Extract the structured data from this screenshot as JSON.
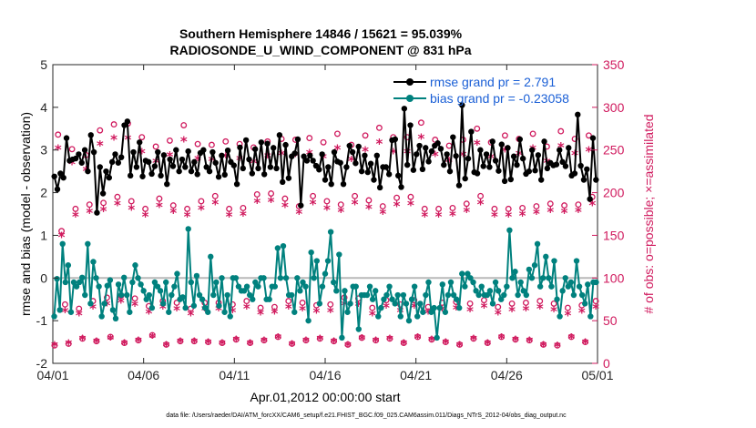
{
  "chart_data": {
    "type": "line",
    "title_line1": "Southern Hemisphere 14846 / 15621 = 95.039%",
    "title_line2": "RADIOSONDE_U_WIND_COMPONENT @ 831 hPa",
    "xlabel": "Apr.01,2012 00:00:00 start",
    "ylabel_left": "rmse and bias (model - observation)",
    "ylabel_right": "# of obs: o=possible; ×=assimilated",
    "xticks": [
      "04/01",
      "04/06",
      "04/11",
      "04/16",
      "04/21",
      "04/26",
      "05/01"
    ],
    "xlim": [
      0,
      30
    ],
    "ylim_left": [
      -2,
      5
    ],
    "ylim_right": [
      0,
      350
    ],
    "yticks_left": [
      "-2",
      "-1",
      "0",
      "1",
      "2",
      "3",
      "4",
      "5"
    ],
    "yticks_right": [
      "0",
      "50",
      "100",
      "150",
      "200",
      "250",
      "300",
      "350"
    ],
    "footer": "data file: /Users/raeder/DAI/ATM_forcXX/CAM6_setup/f.e21.FHIST_BGC.f09_025.CAM6assim.011/Diags_NTrS_2012-04/obs_diag_output.nc",
    "series": [
      {
        "name": "rmse grand pr = 2.791",
        "color": "#000000",
        "marker": "filled-circle",
        "values": [
          2.38,
          2.08,
          2.45,
          2.35,
          3.28,
          2.75,
          2.78,
          2.8,
          2.9,
          2.7,
          3.0,
          2.5,
          3.35,
          2.95,
          1.53,
          2.6,
          1.98,
          2.5,
          2.35,
          2.72,
          2.9,
          2.7,
          2.83,
          3.58,
          3.67,
          2.4,
          2.95,
          2.6,
          3.18,
          2.38,
          2.75,
          2.72,
          2.44,
          2.62,
          2.95,
          2.4,
          2.88,
          2.2,
          2.78,
          2.62,
          3.0,
          2.5,
          2.78,
          2.6,
          2.97,
          2.5,
          2.72,
          2.43,
          2.93,
          3.0,
          2.6,
          2.5,
          2.95,
          2.7,
          2.37,
          2.87,
          2.42,
          2.99,
          2.72,
          2.64,
          2.2,
          3.06,
          2.57,
          3.23,
          2.78,
          2.45,
          3.02,
          2.57,
          3.18,
          2.43,
          3.15,
          2.6,
          3.05,
          2.57,
          3.35,
          2.25,
          3.12,
          2.34,
          2.85,
          2.92,
          3.25,
          1.7,
          2.85,
          2.75,
          2.87,
          2.75,
          2.63,
          2.54,
          2.9,
          2.3,
          2.6,
          2.2,
          2.95,
          2.73,
          2.7,
          2.2,
          2.6,
          3.1,
          2.95,
          2.69,
          3.08,
          2.5,
          2.87,
          2.48,
          2.68,
          2.3,
          2.87,
          2.12,
          2.6,
          2.6,
          2.43,
          3.23,
          3.25,
          2.4,
          2.13,
          3.97,
          2.65,
          3.58,
          2.53,
          2.9,
          3.1,
          2.55,
          3.05,
          2.73,
          2.97,
          3.1,
          3.16,
          3.03,
          2.65,
          2.9,
          2.5,
          3.3,
          2.86,
          2.17,
          4.05,
          2.33,
          2.8,
          3.43,
          2.48,
          2.45,
          3.0,
          2.62,
          2.9,
          2.6,
          3.2,
          2.75,
          2.51,
          3.13,
          2.27,
          3.05,
          2.31,
          2.85,
          2.65,
          3.25,
          2.8,
          2.44,
          2.5,
          3.0,
          2.52,
          2.88,
          2.3,
          3.2,
          2.57,
          2.7,
          2.64,
          2.66,
          3.0,
          2.72,
          2.62,
          3.05,
          2.4,
          2.45,
          3.83,
          2.63,
          2.3,
          2.55,
          1.85,
          3.28,
          2.3
        ]
      },
      {
        "name": "bias grand pr = -0.23058",
        "color": "#00817e",
        "marker": "filled-circle",
        "values": [
          -0.9,
          -0.02,
          -0.75,
          0.8,
          -0.1,
          0.3,
          -0.8,
          -0.1,
          -0.2,
          -0.1,
          0.01,
          -0.4,
          0.8,
          -0.6,
          0.38,
          0.0,
          -0.2,
          -0.9,
          -0.6,
          -0.18,
          -0.05,
          -0.75,
          -0.95,
          -0.15,
          -0.4,
          0.01,
          -0.4,
          -0.8,
          -0.1,
          0.3,
          0.0,
          -0.15,
          -0.3,
          -0.5,
          -0.4,
          -0.7,
          -0.1,
          -0.2,
          -0.3,
          -0.6,
          -0.1,
          -0.8,
          -0.4,
          -0.2,
          0.1,
          -0.5,
          -0.45,
          -0.7,
          1.15,
          -0.1,
          -0.65,
          0.05,
          -0.4,
          -0.5,
          -0.7,
          -0.8,
          0.5,
          -0.4,
          -0.1,
          -0.65,
          0.0,
          -0.8,
          -0.4,
          -0.9,
          0.0,
          0.0,
          -0.2,
          -0.3,
          -0.3,
          -0.2,
          -0.4,
          -0.5,
          -0.1,
          -0.2,
          0.0,
          0.0,
          -0.5,
          -0.5,
          -0.2,
          -0.2,
          0.7,
          0.0,
          0.75,
          0.0,
          -0.4,
          -0.4,
          -0.8,
          0.0,
          -0.3,
          -0.1,
          -0.2,
          -1.0,
          0.6,
          0.0,
          0.4,
          -0.6,
          -0.2,
          0.1,
          0.4,
          1.08,
          -0.1,
          -0.3,
          0.55,
          -1.4,
          -0.3,
          -0.8,
          -0.6,
          -0.2,
          -0.2,
          -1.2,
          -0.4,
          -0.4,
          -0.4,
          -0.2,
          -0.5,
          -0.3,
          -0.9,
          -0.7,
          -0.5,
          -0.4,
          -0.2,
          -0.5,
          -0.6,
          -0.4,
          -0.9,
          -0.4,
          -0.6,
          -1.0,
          -0.5,
          -0.2,
          -0.9,
          -0.6,
          -0.8,
          -0.4,
          -0.1,
          -0.8,
          -0.7,
          -1.4,
          -0.7,
          -0.15,
          -0.8,
          -0.4,
          -0.1,
          -0.4,
          -0.5,
          -0.7,
          0.1,
          -0.2,
          0.1,
          0.0,
          -0.1,
          -0.3,
          -0.4,
          -0.2,
          -0.4,
          -0.4,
          -0.3,
          -0.6,
          -0.1,
          -0.3,
          -0.5,
          -0.4,
          -0.2,
          1.12,
          0.0,
          0.15,
          -0.4,
          -0.1,
          -0.3,
          -0.4,
          0.2,
          0.0,
          0.3,
          0.8,
          -0.2,
          0.0,
          0.5,
          0.0,
          -0.2,
          0.4,
          -0.5,
          -0.9,
          -0.3,
          0.0,
          -0.2,
          -0.1,
          -0.4,
          0.4,
          -0.2,
          -0.4,
          -0.6,
          -0.15,
          -0.9,
          -0.1,
          -0.1
        ]
      },
      {
        "name": "possible obs (o)",
        "color": "#d01a5e",
        "marker": "open-circle",
        "values": [
          21,
          268,
          155,
          69,
          23,
          251,
          181,
          64,
          29,
          244,
          186,
          73,
          26,
          273,
          188,
          77,
          31,
          280,
          195,
          79,
          24,
          281,
          190,
          76,
          27,
          265,
          181,
          67,
          33,
          254,
          193,
          73,
          22,
          261,
          185,
          71,
          26,
          279,
          181,
          64,
          26,
          257,
          190,
          71,
          25,
          256,
          196,
          71,
          24,
          260,
          181,
          69,
          28,
          257,
          182,
          73,
          24,
          253,
          198,
          65,
          27,
          260,
          199,
          66,
          31,
          263,
          193,
          73,
          23,
          262,
          184,
          71,
          27,
          264,
          196,
          68,
          29,
          259,
          190,
          69,
          26,
          269,
          186,
          77,
          22,
          256,
          196,
          76,
          30,
          267,
          191,
          65,
          27,
          276,
          184,
          74,
          29,
          265,
          194,
          69,
          24,
          265,
          195,
          74,
          31,
          282,
          181,
          66,
          28,
          262,
          181,
          71,
          25,
          255,
          182,
          72,
          22,
          262,
          187,
          70,
          29,
          275,
          196,
          74,
          24,
          259,
          181,
          66,
          31,
          267,
          181,
          70,
          28,
          263,
          182,
          71,
          27,
          269,
          184,
          73,
          22,
          254,
          187,
          70,
          21,
          272,
          185,
          65,
          31,
          263,
          186,
          68,
          25,
          267,
          195,
          73
        ]
      },
      {
        "name": "assimilated obs (×)",
        "color": "#d01a5e",
        "marker": "asterisk",
        "values": [
          20,
          250,
          148,
          60,
          22,
          233,
          172,
          56,
          27,
          225,
          176,
          64,
          24,
          255,
          178,
          68,
          28,
          262,
          185,
          71,
          22,
          262,
          180,
          67,
          25,
          246,
          172,
          58,
          30,
          235,
          183,
          64,
          20,
          242,
          176,
          62,
          24,
          260,
          172,
          56,
          24,
          238,
          180,
          62,
          23,
          237,
          186,
          62,
          22,
          241,
          172,
          60,
          26,
          238,
          173,
          64,
          22,
          234,
          188,
          57,
          25,
          241,
          189,
          58,
          29,
          244,
          183,
          64,
          21,
          243,
          175,
          62,
          25,
          245,
          186,
          59,
          27,
          240,
          180,
          60,
          24,
          250,
          177,
          68,
          20,
          237,
          186,
          67,
          28,
          248,
          181,
          56,
          25,
          257,
          175,
          65,
          27,
          246,
          184,
          60,
          22,
          246,
          185,
          65,
          29,
          263,
          172,
          58,
          26,
          243,
          172,
          62,
          23,
          236,
          173,
          63,
          20,
          243,
          177,
          61,
          27,
          256,
          186,
          65,
          22,
          240,
          172,
          57,
          29,
          248,
          172,
          61,
          26,
          244,
          173,
          62,
          25,
          250,
          175,
          64,
          20,
          235,
          177,
          61,
          19,
          253,
          176,
          56,
          29,
          244,
          177,
          59,
          23,
          248,
          185,
          64
        ]
      }
    ]
  }
}
